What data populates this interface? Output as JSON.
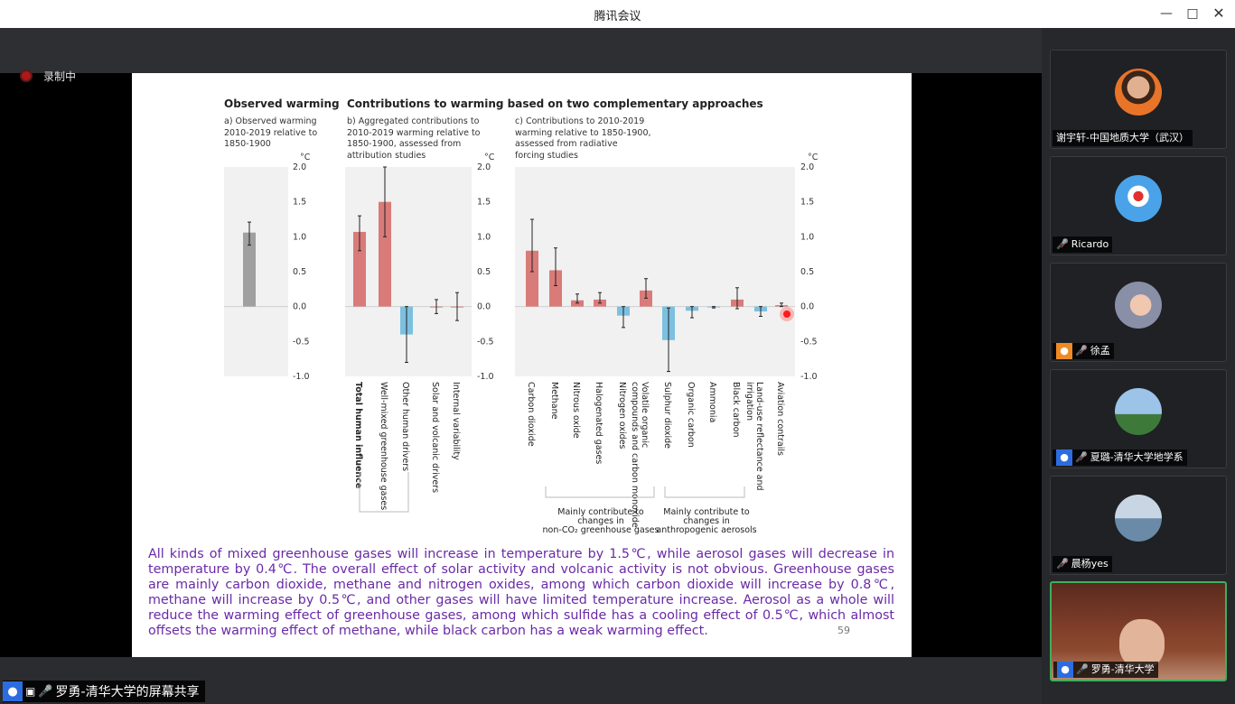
{
  "window": {
    "title": "腾讯会议"
  },
  "recording": {
    "label": "录制中"
  },
  "slide": {
    "heading_observed": "Observed warming",
    "heading_contrib": "Contributions to warming based on two complementary approaches",
    "sub_a": "a) Observed warming\n2010-2019 relative to\n1850-1900",
    "sub_b": "b) Aggregated contributions to\n2010-2019 warming relative to\n1850-1900, assessed from\nattribution studies",
    "sub_c": "c) Contributions to 2010-2019\nwarming relative to 1850-1900,\nassessed from radiative\nforcing studies",
    "unit": "°C",
    "ticks": [
      "2.0",
      "1.5",
      "1.0",
      "0.5",
      "0.0",
      "-0.5",
      "-1.0"
    ],
    "note_ghg_1": "Mainly contribute to",
    "note_ghg_2": "changes in",
    "note_ghg_3": "non-CO₂ greenhouse gases",
    "note_aer_1": "Mainly contribute to",
    "note_aer_2": "changes in",
    "note_aer_3": "anthropogenic aerosols",
    "body": "All kinds of mixed greenhouse gases will increase in temperature by 1.5℃, while aerosol gases will decrease in temperature by 0.4℃. The overall effect of solar activity and volcanic activity is not obvious. Greenhouse gases are mainly carbon dioxide, methane and nitrogen oxides, among which carbon dioxide will increase by 0.8℃, methane will increase by 0.5℃, and other gases will have limited temperature increase. Aerosol as a whole will reduce the warming effect of greenhouse gases, among which sulfide has a cooling effect of 0.5℃, which almost offsets the warming effect of methane, while black carbon has a weak warming effect.",
    "page": "59"
  },
  "chart_data": [
    {
      "type": "bar",
      "title": "Observed warming",
      "subtitle": "a) Observed warming 2010-2019 relative to 1850-1900",
      "ylabel": "°C",
      "ylim": [
        -1.0,
        2.0
      ],
      "categories": [
        ""
      ],
      "values": [
        1.06
      ],
      "error": [
        [
          0.88,
          1.21
        ]
      ],
      "colors": [
        "#a0a0a0"
      ]
    },
    {
      "type": "bar",
      "subtitle": "b) Aggregated contributions to 2010-2019 warming relative to 1850-1900, assessed from attribution studies",
      "ylabel": "°C",
      "ylim": [
        -1.0,
        2.0
      ],
      "categories": [
        "Total human influence",
        "Well-mixed greenhouse gases",
        "Other human drivers",
        "Solar and volcanic drivers",
        "Internal variability"
      ],
      "values": [
        1.07,
        1.5,
        -0.4,
        0.0,
        0.0
      ],
      "error": [
        [
          0.8,
          1.3
        ],
        [
          1.0,
          2.0
        ],
        [
          -0.8,
          0.0
        ],
        [
          -0.1,
          0.1
        ],
        [
          -0.2,
          0.2
        ]
      ],
      "colors": [
        "#d97b78",
        "#d97b78",
        "#7cc0e0",
        "#d97b78",
        "#d97b78"
      ]
    },
    {
      "type": "bar",
      "subtitle": "c) Contributions to 2010-2019 warming relative to 1850-1900, assessed from radiative forcing studies",
      "ylabel": "°C",
      "ylim": [
        -1.0,
        2.0
      ],
      "categories": [
        "Carbon dioxide",
        "Methane",
        "Nitrous oxide",
        "Halogenated gases",
        "Nitrogen oxides",
        "Volatile organic compounds and carbon monoxide",
        "Sulphur dioxide",
        "Organic carbon",
        "Ammonia",
        "Black carbon",
        "Land-use reflectance and irrigation",
        "Aviation contrails"
      ],
      "values": [
        0.8,
        0.52,
        0.09,
        0.1,
        -0.13,
        0.23,
        -0.48,
        -0.06,
        -0.01,
        0.1,
        -0.07,
        0.02
      ],
      "error": [
        [
          0.5,
          1.25
        ],
        [
          0.3,
          0.84
        ],
        [
          0.05,
          0.18
        ],
        [
          0.05,
          0.2
        ],
        [
          -0.3,
          0.0
        ],
        [
          0.12,
          0.4
        ],
        [
          -0.93,
          -0.02
        ],
        [
          -0.16,
          0.0
        ],
        [
          -0.02,
          0.0
        ],
        [
          -0.03,
          0.27
        ],
        [
          -0.14,
          0.0
        ],
        [
          0.0,
          0.05
        ]
      ],
      "colors": [
        "#d97b78",
        "#d97b78",
        "#d97b78",
        "#d97b78",
        "#7cc0e0",
        "#d97b78",
        "#7cc0e0",
        "#7cc0e0",
        "#7cc0e0",
        "#d97b78",
        "#7cc0e0",
        "#d97b78"
      ]
    }
  ],
  "participants": [
    {
      "name": "谢宇轩-中国地质大学（武汉）",
      "mic": "none",
      "badge": false,
      "avatar": "photo-orange"
    },
    {
      "name": "Ricardo",
      "mic": "muted",
      "badge": false,
      "avatar": "mascot-blue"
    },
    {
      "name": "徐孟",
      "mic": "muted",
      "badge": "orange",
      "avatar": "photo-woman"
    },
    {
      "name": "夏璐-清华大学地学系",
      "mic": "muted",
      "badge": "blue",
      "avatar": "photo-sky"
    },
    {
      "name": "晨杨yes",
      "mic": "muted",
      "badge": false,
      "avatar": "photo-lake"
    },
    {
      "name": "罗勇-清华大学",
      "mic": "on",
      "badge": "blue",
      "avatar": "video-bookshelf"
    }
  ],
  "share": {
    "label": "罗勇-清华大学的屏幕共享"
  }
}
